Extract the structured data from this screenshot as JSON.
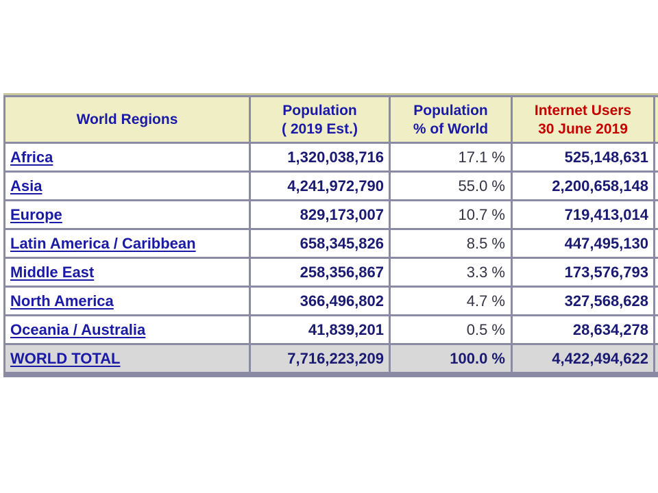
{
  "table": {
    "headers": {
      "region": "World Regions",
      "population_l1": "Population",
      "population_l2": "( 2019 Est.)",
      "pct_l1": "Population",
      "pct_l2": "% of World",
      "internet_l1": "Internet Users",
      "internet_l2": "30 June 2019"
    },
    "rows": [
      {
        "region": "Africa",
        "population": "1,320,038,716",
        "pct": "17.1 %",
        "internet": "525,148,631"
      },
      {
        "region": "Asia",
        "population": "4,241,972,790",
        "pct": "55.0 %",
        "internet": "2,200,658,148"
      },
      {
        "region": "Europe",
        "population": "829,173,007",
        "pct": "10.7 %",
        "internet": "719,413,014"
      },
      {
        "region": "Latin America / Caribbean",
        "population": "658,345,826",
        "pct": "8.5 %",
        "internet": "447,495,130"
      },
      {
        "region": "Middle East",
        "population": "258,356,867",
        "pct": "3.3 %",
        "internet": "173,576,793"
      },
      {
        "region": "North America",
        "population": "366,496,802",
        "pct": "4.7 %",
        "internet": "327,568,628"
      },
      {
        "region": "Oceania / Australia",
        "population": "41,839,201",
        "pct": "0.5 %",
        "internet": "28,634,278"
      }
    ],
    "total": {
      "region": "WORLD TOTAL",
      "population": "7,716,223,209",
      "pct": "100.0 %",
      "internet": "4,422,494,622"
    }
  }
}
